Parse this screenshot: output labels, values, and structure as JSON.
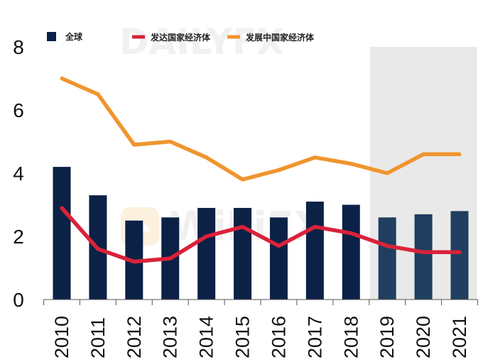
{
  "chart_data": {
    "type": "bar",
    "categories": [
      "2010",
      "2011",
      "2012",
      "2013",
      "2014",
      "2015",
      "2016",
      "2017",
      "2018",
      "2019",
      "2020",
      "2021"
    ],
    "series": [
      {
        "name": "全球",
        "kind": "bar",
        "color": "#0b2145",
        "forecast_color": "#1f3e60",
        "values": [
          4.2,
          3.3,
          2.5,
          2.6,
          2.9,
          2.9,
          2.6,
          3.1,
          3.0,
          2.6,
          2.7,
          2.8
        ]
      },
      {
        "name": "发达国家经济体",
        "kind": "line",
        "color": "#d9223a",
        "values": [
          2.9,
          1.6,
          1.2,
          1.3,
          2.0,
          2.3,
          1.7,
          2.3,
          2.1,
          1.7,
          1.5,
          1.5
        ]
      },
      {
        "name": "发展中国家经济体",
        "kind": "line",
        "color": "#f0952e",
        "values": [
          7.0,
          6.5,
          4.9,
          5.0,
          4.5,
          3.8,
          4.1,
          4.5,
          4.3,
          4.0,
          4.6,
          4.6
        ]
      }
    ],
    "y_ticks": [
      "0",
      "2",
      "4",
      "6",
      "8"
    ],
    "ylim": [
      0,
      8
    ],
    "shaded_categories": [
      "2019",
      "2020",
      "2021"
    ],
    "shade_color": "#e9e9e9",
    "legend_position": "top",
    "grid": false
  },
  "watermark": {
    "top_text": "DAILYFX",
    "center_text": "WikiFX"
  }
}
